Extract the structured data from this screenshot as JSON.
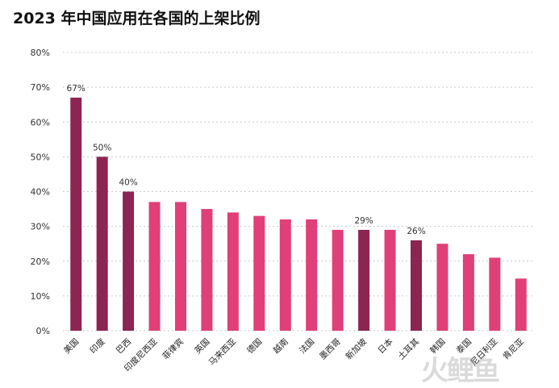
{
  "watermark": "火鲤鱼",
  "chart_data": {
    "type": "bar",
    "title": "2023 年中国应用在各国的上架比例",
    "categories": [
      "美国",
      "印度",
      "巴西",
      "印度尼西亚",
      "菲律宾",
      "英国",
      "马来西亚",
      "德国",
      "越南",
      "法国",
      "墨西哥",
      "新加坡",
      "日本",
      "土耳其",
      "韩国",
      "泰国",
      "尼日利亚",
      "肯尼亚"
    ],
    "values": [
      67,
      50,
      40,
      37,
      37,
      35,
      34,
      33,
      32,
      32,
      29,
      29,
      29,
      26,
      25,
      22,
      21,
      15
    ],
    "data_labels": [
      "67%",
      "50%",
      "40%",
      "",
      "",
      "",
      "",
      "",
      "",
      "",
      "",
      "29%",
      "",
      "26%",
      "",
      "",
      "",
      ""
    ],
    "highlighted": [
      true,
      true,
      true,
      false,
      false,
      false,
      false,
      false,
      false,
      false,
      false,
      true,
      false,
      true,
      false,
      false,
      false,
      false
    ],
    "y_ticks": [
      "0%",
      "10%",
      "20%",
      "30%",
      "40%",
      "50%",
      "60%",
      "70%",
      "80%"
    ],
    "ylim": [
      0,
      80
    ],
    "ystep": 10,
    "grid": true,
    "colors": {
      "highlight": "#8c2551",
      "normal": "#e03f78",
      "grid": "#cccccc"
    }
  }
}
